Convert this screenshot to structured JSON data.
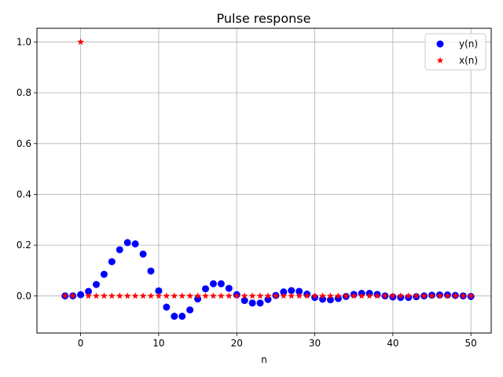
{
  "chart_data": {
    "type": "scatter",
    "title": "Pulse response",
    "xlabel": "n",
    "ylabel": "",
    "xlim": [
      -5.6,
      52.6
    ],
    "ylim": [
      -0.146,
      1.054
    ],
    "xticks": [
      0,
      10,
      20,
      30,
      40,
      50
    ],
    "yticks": [
      0.0,
      0.2,
      0.4,
      0.6,
      0.8,
      1.0
    ],
    "xtick_labels": [
      "0",
      "10",
      "20",
      "30",
      "40",
      "50"
    ],
    "ytick_labels": [
      "0.0",
      "0.2",
      "0.4",
      "0.6",
      "0.8",
      "1.0"
    ],
    "grid": true,
    "legend": "top-right",
    "series": [
      {
        "name": "y(n)",
        "color": "#0000ff",
        "marker": "circle",
        "x": [
          -2,
          -1,
          0,
          1,
          2,
          3,
          4,
          5,
          6,
          7,
          8,
          9,
          10,
          11,
          12,
          13,
          14,
          15,
          16,
          17,
          18,
          19,
          20,
          21,
          22,
          23,
          24,
          25,
          26,
          27,
          28,
          29,
          30,
          31,
          32,
          33,
          34,
          35,
          36,
          37,
          38,
          39,
          40,
          41,
          42,
          43,
          44,
          45,
          46,
          47,
          48,
          49,
          50
        ],
        "y": [
          0,
          0,
          0.005,
          0.018,
          0.045,
          0.085,
          0.135,
          0.182,
          0.21,
          0.205,
          0.165,
          0.098,
          0.02,
          -0.044,
          -0.08,
          -0.08,
          -0.055,
          -0.012,
          0.028,
          0.048,
          0.048,
          0.03,
          0.005,
          -0.018,
          -0.028,
          -0.028,
          -0.014,
          0.002,
          0.016,
          0.021,
          0.018,
          0.007,
          -0.006,
          -0.013,
          -0.015,
          -0.01,
          -0.002,
          0.006,
          0.01,
          0.01,
          0.006,
          0,
          -0.004,
          -0.006,
          -0.006,
          -0.003,
          0,
          0.003,
          0.004,
          0.004,
          0.002,
          0,
          -0.002
        ]
      },
      {
        "name": "x(n)",
        "color": "#ff0000",
        "marker": "star",
        "x": [
          -2,
          -1,
          0,
          1,
          2,
          3,
          4,
          5,
          6,
          7,
          8,
          9,
          10,
          11,
          12,
          13,
          14,
          15,
          16,
          17,
          18,
          19,
          20,
          21,
          22,
          23,
          24,
          25,
          26,
          27,
          28,
          29,
          30,
          31,
          32,
          33,
          34,
          35,
          36,
          37,
          38,
          39,
          40,
          41,
          42,
          43,
          44,
          45,
          46,
          47,
          48,
          49,
          50
        ],
        "y": [
          0,
          0,
          1,
          0,
          0,
          0,
          0,
          0,
          0,
          0,
          0,
          0,
          0,
          0,
          0,
          0,
          0,
          0,
          0,
          0,
          0,
          0,
          0,
          0,
          0,
          0,
          0,
          0,
          0,
          0,
          0,
          0,
          0,
          0,
          0,
          0,
          0,
          0,
          0,
          0,
          0,
          0,
          0,
          0,
          0,
          0,
          0,
          0,
          0,
          0,
          0,
          0,
          0
        ]
      }
    ]
  }
}
